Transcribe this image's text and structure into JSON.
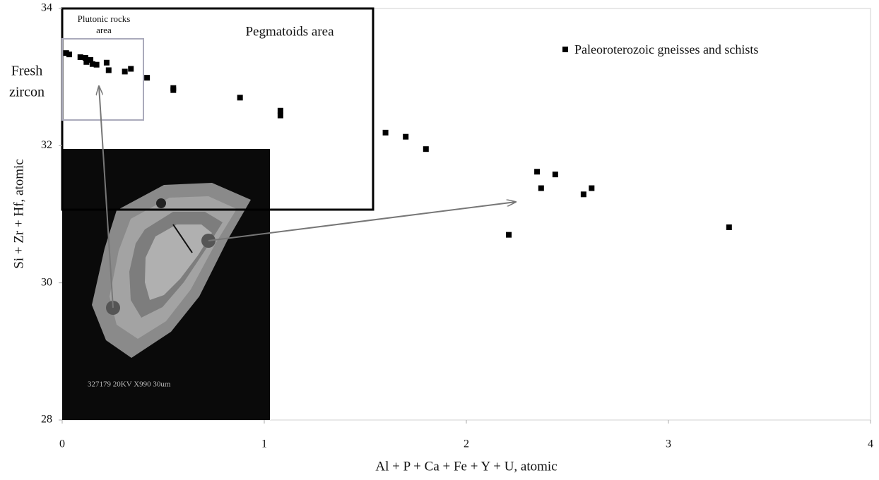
{
  "chart_data": {
    "type": "scatter",
    "xlabel": "Al + P + Ca + Fe + Y + U, atomic",
    "ylabel": "Si + Zr + Hf, atomic",
    "xlim": [
      0,
      4
    ],
    "xticks": [
      0,
      1,
      2,
      3,
      4
    ],
    "ylim": [
      28,
      34
    ],
    "yticks": [
      28,
      30,
      32,
      34
    ],
    "grid": false,
    "series": [
      {
        "name": "Paleoroterozoic gneisses and schists",
        "color": "#000000",
        "x": [
          0.02,
          0.035,
          0.09,
          0.115,
          0.12,
          0.14,
          0.15,
          0.17,
          0.22,
          0.23,
          0.31,
          0.34,
          0.42,
          0.55,
          0.55,
          0.88,
          1.08,
          1.08,
          1.6,
          1.7,
          1.8,
          2.35,
          2.37,
          2.44,
          2.58,
          2.62,
          2.21,
          3.3
        ],
        "values": [
          33.35,
          33.33,
          33.29,
          33.28,
          33.22,
          33.25,
          33.19,
          33.18,
          33.21,
          33.1,
          33.08,
          33.12,
          32.99,
          32.84,
          32.81,
          32.7,
          32.51,
          32.44,
          32.19,
          32.13,
          31.95,
          31.62,
          31.38,
          31.58,
          31.29,
          31.38,
          30.7,
          30.81
        ]
      }
    ],
    "annotations": [
      {
        "lines": [
          "Plutonic rocks",
          "area"
        ]
      },
      {
        "lines": [
          "Pegmatoids area"
        ]
      },
      {
        "lines": [
          "Fresh",
          "zircon"
        ]
      }
    ],
    "inset_caption": "327179 20KV X990 30um"
  }
}
